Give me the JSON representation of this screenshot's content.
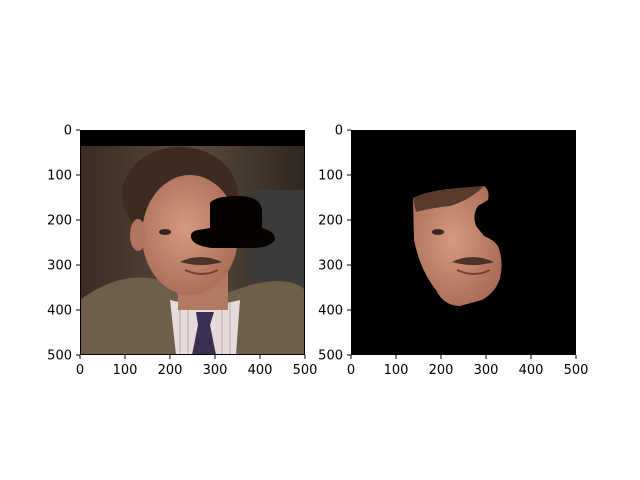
{
  "chart_data": [
    {
      "type": "image",
      "image": "photo-person-face-with-dark-hat-shaped-mask",
      "xlim": [
        0,
        500
      ],
      "ylim": [
        500,
        0
      ],
      "xticks": [
        0,
        100,
        200,
        300,
        400,
        500
      ],
      "yticks": [
        0,
        100,
        200,
        300,
        400,
        500
      ]
    },
    {
      "type": "image",
      "image": "segmented-face-on-black-background",
      "xlim": [
        0,
        500
      ],
      "ylim": [
        500,
        0
      ],
      "xticks": [
        0,
        100,
        200,
        300,
        400,
        500
      ],
      "yticks": [
        0,
        100,
        200,
        300,
        400,
        500
      ]
    }
  ],
  "colors": {
    "background": "#ffffff",
    "mask_black": "#000000",
    "suit": "#6e5e4c",
    "skin": "#c08870",
    "hair": "#3e2a20"
  }
}
